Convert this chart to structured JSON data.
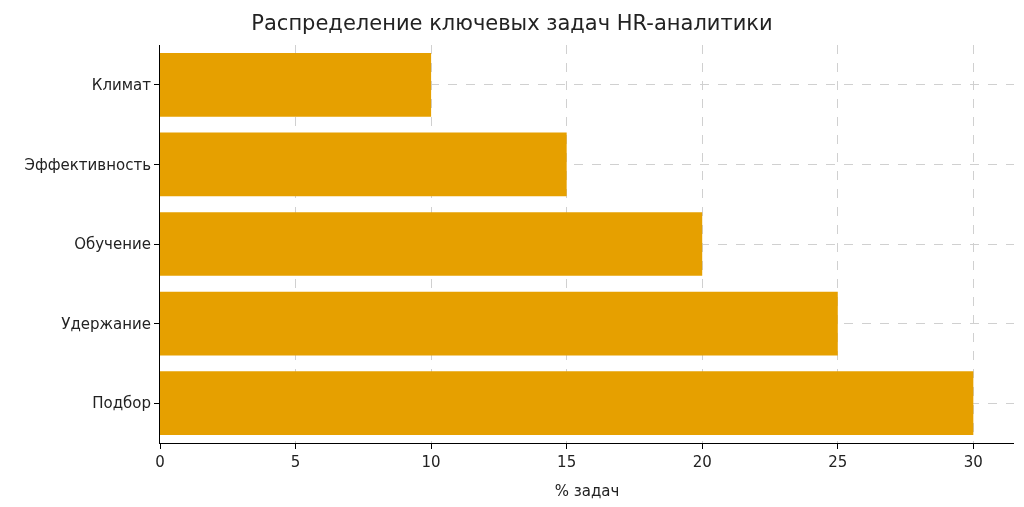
{
  "chart_data": {
    "type": "bar",
    "orientation": "horizontal",
    "title": "Распределение ключевых задач HR-аналитики",
    "xlabel": "% задач",
    "categories": [
      "Климат",
      "Эффективность",
      "Обучение",
      "Удержание",
      "Подбор"
    ],
    "values": [
      10,
      15,
      20,
      25,
      30
    ],
    "color": "#e6a000",
    "xlim": [
      0,
      31.5
    ],
    "xticks": [
      0,
      5,
      10,
      15,
      20,
      25,
      30
    ],
    "grid": true
  }
}
